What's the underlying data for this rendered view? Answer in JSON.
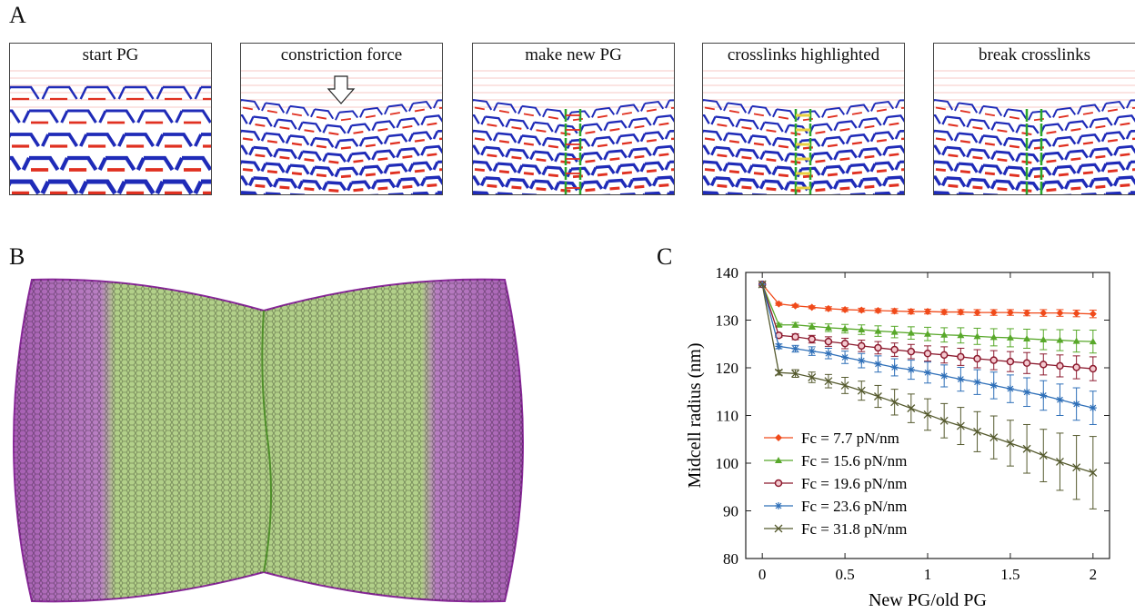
{
  "panels": {
    "a_label": "A",
    "b_label": "B",
    "c_label": "C"
  },
  "snapshots": [
    {
      "caption": "start PG",
      "dip": "none"
    },
    {
      "caption": "constriction force",
      "dip": "arrow"
    },
    {
      "caption": "make new PG",
      "dip": "new"
    },
    {
      "caption": "crosslinks highlighted",
      "dip": "highlight"
    },
    {
      "caption": "break crosslinks",
      "dip": "broken"
    }
  ],
  "colors": {
    "glycan": "#1f2bb8",
    "peptide": "#e03020",
    "new_pg": "#2aa52a",
    "crosslink_highlight": "#e8d040",
    "cell_outer": "#8a2a9a",
    "cell_middle": "#7fb03a"
  },
  "chart_data": {
    "type": "line",
    "xlabel": "New PG/old PG",
    "ylabel": "Midcell radius (nm)",
    "xlim": [
      -0.1,
      2.1
    ],
    "ylim": [
      80,
      140
    ],
    "xticks": [
      0,
      0.5,
      1,
      1.5,
      2
    ],
    "xtick_labels": [
      "0",
      "0.5",
      "1",
      "1.5",
      "2"
    ],
    "yticks": [
      80,
      90,
      100,
      110,
      120,
      130,
      140
    ],
    "yticks_labels": [
      "80",
      "90",
      "100",
      "110",
      "120",
      "130",
      "140"
    ],
    "x": [
      0,
      0.1,
      0.2,
      0.3,
      0.4,
      0.5,
      0.6,
      0.7,
      0.8,
      0.9,
      1.0,
      1.1,
      1.2,
      1.3,
      1.4,
      1.5,
      1.6,
      1.7,
      1.8,
      1.9,
      2.0
    ],
    "legend_position": "bottom-left",
    "series": [
      {
        "name": "Fc = 7.7 pN/nm",
        "color": "#f04a1a",
        "marker": "diamond",
        "values": [
          137.5,
          133.4,
          133.0,
          132.7,
          132.4,
          132.2,
          132.1,
          132.0,
          131.9,
          131.8,
          131.8,
          131.7,
          131.7,
          131.6,
          131.6,
          131.6,
          131.5,
          131.5,
          131.5,
          131.4,
          131.3
        ],
        "errors": [
          0,
          0.3,
          0.3,
          0.3,
          0.4,
          0.4,
          0.4,
          0.4,
          0.5,
          0.5,
          0.5,
          0.5,
          0.5,
          0.6,
          0.6,
          0.6,
          0.6,
          0.7,
          0.7,
          0.7,
          0.8
        ]
      },
      {
        "name": "Fc = 15.6 pN/nm",
        "color": "#58a82a",
        "marker": "triangle",
        "values": [
          137.5,
          129.0,
          129.0,
          128.7,
          128.4,
          128.2,
          128.0,
          127.7,
          127.5,
          127.3,
          127.1,
          126.9,
          126.8,
          126.6,
          126.4,
          126.3,
          126.1,
          125.9,
          125.8,
          125.6,
          125.5
        ],
        "errors": [
          0,
          0.3,
          0.5,
          0.6,
          0.8,
          0.9,
          1.0,
          1.1,
          1.2,
          1.3,
          1.4,
          1.5,
          1.6,
          1.7,
          1.8,
          1.9,
          2.0,
          2.1,
          2.2,
          2.3,
          2.4
        ]
      },
      {
        "name": "Fc = 19.6 pN/nm",
        "color": "#8c1a2e",
        "marker": "circle",
        "values": [
          137.5,
          126.8,
          126.5,
          126.0,
          125.5,
          125.1,
          124.6,
          124.2,
          123.8,
          123.4,
          123.0,
          122.7,
          122.3,
          121.9,
          121.6,
          121.3,
          121.0,
          120.7,
          120.4,
          120.1,
          119.8
        ],
        "errors": [
          0,
          0.4,
          0.6,
          0.8,
          1.0,
          1.1,
          1.2,
          1.3,
          1.4,
          1.5,
          1.6,
          1.7,
          1.8,
          1.9,
          2.0,
          2.1,
          2.2,
          2.2,
          2.3,
          2.4,
          2.5
        ]
      },
      {
        "name": "Fc = 23.6 pN/nm",
        "color": "#2e6fb8",
        "marker": "star",
        "values": [
          137.5,
          124.5,
          124.0,
          123.5,
          123.0,
          122.2,
          121.5,
          120.8,
          120.1,
          119.6,
          119.0,
          118.3,
          117.6,
          117.0,
          116.3,
          115.6,
          114.9,
          114.2,
          113.3,
          112.4,
          111.6
        ],
        "errors": [
          0,
          0.5,
          0.7,
          0.9,
          1.1,
          1.3,
          1.5,
          1.7,
          1.8,
          2.0,
          2.2,
          2.3,
          2.5,
          2.6,
          2.8,
          2.9,
          3.0,
          3.1,
          3.3,
          3.4,
          3.5
        ]
      },
      {
        "name": "Fc = 31.8 pN/nm",
        "color": "#555a2e",
        "marker": "x",
        "values": [
          137.5,
          119.0,
          118.8,
          118.0,
          117.2,
          116.3,
          115.2,
          114.0,
          112.8,
          111.5,
          110.2,
          108.9,
          107.8,
          106.6,
          105.4,
          104.2,
          103.0,
          101.6,
          100.3,
          99.1,
          98.0
        ],
        "errors": [
          0,
          0.5,
          0.8,
          1.1,
          1.4,
          1.7,
          2.0,
          2.3,
          2.7,
          3.0,
          3.3,
          3.6,
          3.9,
          4.2,
          4.5,
          4.8,
          5.1,
          5.5,
          6.0,
          6.7,
          7.6
        ]
      }
    ]
  }
}
